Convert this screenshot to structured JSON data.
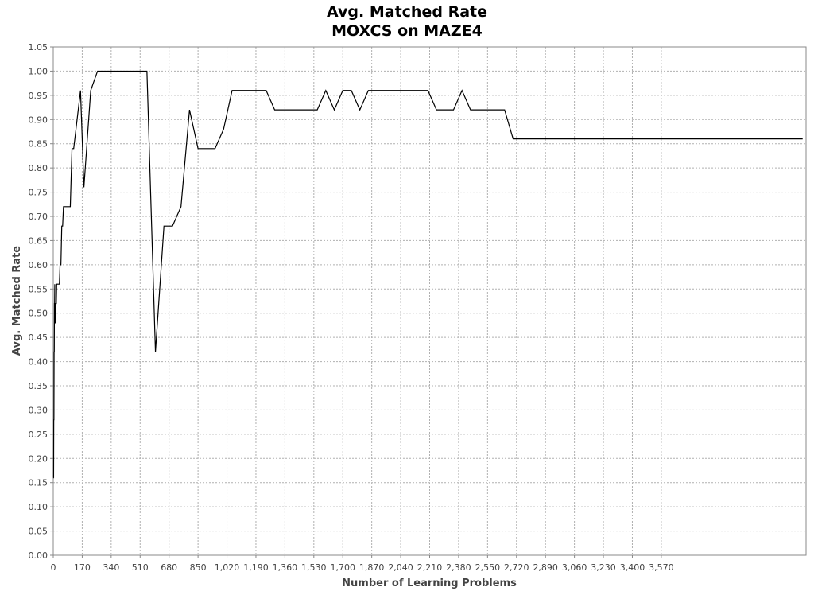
{
  "chart_data": {
    "type": "line",
    "title": "Avg. Matched Rate",
    "subtitle": "MOXCS on MAZE4",
    "xlabel": "Number of Learning Problems",
    "ylabel": "Avg. Matched Rate",
    "xlim": [
      0,
      4420
    ],
    "ylim": [
      0,
      1.05
    ],
    "grid": true,
    "xticks": [
      0,
      170,
      340,
      510,
      680,
      850,
      1020,
      1190,
      1360,
      1530,
      1700,
      1870,
      2040,
      2210,
      2380,
      2550,
      2720,
      2890,
      3060,
      3230,
      3400,
      3570
    ],
    "xtick_labels": [
      "0",
      "170",
      "340",
      "510",
      "680",
      "850",
      "1,020",
      "1,190",
      "1,360",
      "1,530",
      "1,700",
      "1,870",
      "2,040",
      "2,210",
      "2,380",
      "2,550",
      "2,720",
      "2,890",
      "3,060",
      "3,230",
      "3,400",
      "3,570"
    ],
    "yticks": [
      0,
      0.05,
      0.1,
      0.15,
      0.2,
      0.25,
      0.3,
      0.35,
      0.4,
      0.45,
      0.5,
      0.55,
      0.6,
      0.65,
      0.7,
      0.75,
      0.8,
      0.85,
      0.9,
      0.95,
      1.0,
      1.05
    ],
    "ytick_labels": [
      "0.00",
      "0.05",
      "0.10",
      "0.15",
      "0.20",
      "0.25",
      "0.30",
      "0.35",
      "0.40",
      "0.45",
      "0.50",
      "0.55",
      "0.60",
      "0.65",
      "0.70",
      "0.75",
      "0.80",
      "0.85",
      "0.90",
      "0.95",
      "1.00",
      "1.05"
    ],
    "series": [
      {
        "name": "Avg. Matched Rate",
        "x": [
          1,
          2,
          3,
          4,
          5,
          6,
          7,
          8,
          9,
          10,
          11,
          12,
          13,
          14,
          15,
          16,
          18,
          20,
          22,
          24,
          27,
          30,
          33,
          36,
          40,
          45,
          50,
          55,
          60,
          65,
          70,
          80,
          90,
          100,
          110,
          120,
          140,
          160,
          180,
          200,
          220,
          240,
          260,
          280,
          300,
          350,
          400,
          450,
          500,
          550,
          600,
          650,
          700,
          750,
          800,
          850,
          900,
          950,
          1000,
          1050,
          1100,
          1150,
          1200,
          1250,
          1300,
          1350,
          1400,
          1450,
          1500,
          1550,
          1600,
          1650,
          1700,
          1750,
          1800,
          1850,
          1900,
          1950,
          2000,
          2050,
          2100,
          2150,
          2200,
          2250,
          2300,
          2350,
          2400,
          2450,
          2500,
          2550,
          2600,
          2650,
          2700,
          2750,
          2800,
          2850,
          2900,
          2950,
          3000,
          3050,
          3100,
          3150,
          3200,
          3250,
          3300,
          3350,
          3400,
          3450,
          3500,
          3550,
          3600,
          3650,
          3700,
          3750,
          3800,
          3850,
          3900,
          3950,
          4000,
          4050,
          4100,
          4150,
          4200,
          4250,
          4300,
          4350,
          4400
        ],
        "values": [
          0.16,
          0.16,
          0.28,
          0.28,
          0.42,
          0.42,
          0.52,
          0.52,
          0.56,
          0.48,
          0.48,
          0.52,
          0.52,
          0.48,
          0.48,
          0.52,
          0.52,
          0.56,
          0.56,
          0.56,
          0.56,
          0.56,
          0.56,
          0.56,
          0.6,
          0.6,
          0.68,
          0.68,
          0.72,
          0.72,
          0.72,
          0.72,
          0.72,
          0.72,
          0.84,
          0.84,
          0.9,
          0.96,
          0.76,
          0.86,
          0.96,
          0.98,
          1.0,
          1.0,
          1.0,
          1.0,
          1.0,
          1.0,
          1.0,
          1.0,
          0.42,
          0.68,
          0.68,
          0.72,
          0.92,
          0.84,
          0.84,
          0.84,
          0.88,
          0.96,
          0.96,
          0.96,
          0.96,
          0.96,
          0.92,
          0.92,
          0.92,
          0.92,
          0.92,
          0.92,
          0.96,
          0.92,
          0.96,
          0.96,
          0.92,
          0.96,
          0.96,
          0.96,
          0.96,
          0.96,
          0.96,
          0.96,
          0.96,
          0.92,
          0.92,
          0.92,
          0.96,
          0.92,
          0.92,
          0.92,
          0.92,
          0.92,
          0.86,
          0.86,
          0.86,
          0.86,
          0.86,
          0.86,
          0.86,
          0.86,
          0.86,
          0.86,
          0.86,
          0.86,
          0.86,
          0.86,
          0.86,
          0.86,
          0.86,
          0.86,
          0.86,
          0.86,
          0.86,
          0.86,
          0.86,
          0.86,
          0.86,
          0.86,
          0.86,
          0.86,
          0.86,
          0.86,
          0.86,
          0.86,
          0.86,
          0.86,
          0.86
        ]
      }
    ],
    "colors": {
      "line": "#000000",
      "grid": "#b0b0b0",
      "axis": "#888888"
    }
  }
}
